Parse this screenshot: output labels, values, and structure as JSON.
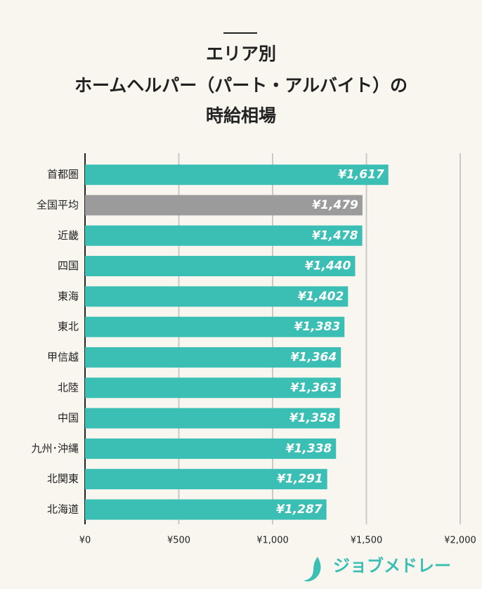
{
  "chart_data": {
    "type": "bar",
    "orientation": "horizontal",
    "title": [
      "エリア別",
      "ホームヘルパー（パート・アルバイト）の",
      "時給相場"
    ],
    "categories": [
      "首都圏",
      "全国平均",
      "近畿",
      "四国",
      "東海",
      "東北",
      "甲信越",
      "北陸",
      "中国",
      "九州･沖縄",
      "北関東",
      "北海道"
    ],
    "values": [
      1617,
      1479,
      1478,
      1440,
      1402,
      1383,
      1364,
      1363,
      1358,
      1338,
      1291,
      1287
    ],
    "value_labels": [
      "¥1,617",
      "¥1,479",
      "¥1,478",
      "¥1,440",
      "¥1,402",
      "¥1,383",
      "¥1,364",
      "¥1,363",
      "¥1,358",
      "¥1,338",
      "¥1,291",
      "¥1,287"
    ],
    "colors": [
      "#3bbfb5",
      "#9b9b9b",
      "#3bbfb5",
      "#3bbfb5",
      "#3bbfb5",
      "#3bbfb5",
      "#3bbfb5",
      "#3bbfb5",
      "#3bbfb5",
      "#3bbfb5",
      "#3bbfb5",
      "#3bbfb5"
    ],
    "xlim": [
      0,
      2000
    ],
    "xticks": [
      {
        "value": 0,
        "label": "¥0"
      },
      {
        "value": 500,
        "label": "¥500"
      },
      {
        "value": 1000,
        "label": "¥1,000"
      },
      {
        "value": 1500,
        "label": "¥1,500"
      },
      {
        "value": 2000,
        "label": "¥2,000"
      }
    ],
    "grid": true
  },
  "logo": "ジョブメドレー"
}
